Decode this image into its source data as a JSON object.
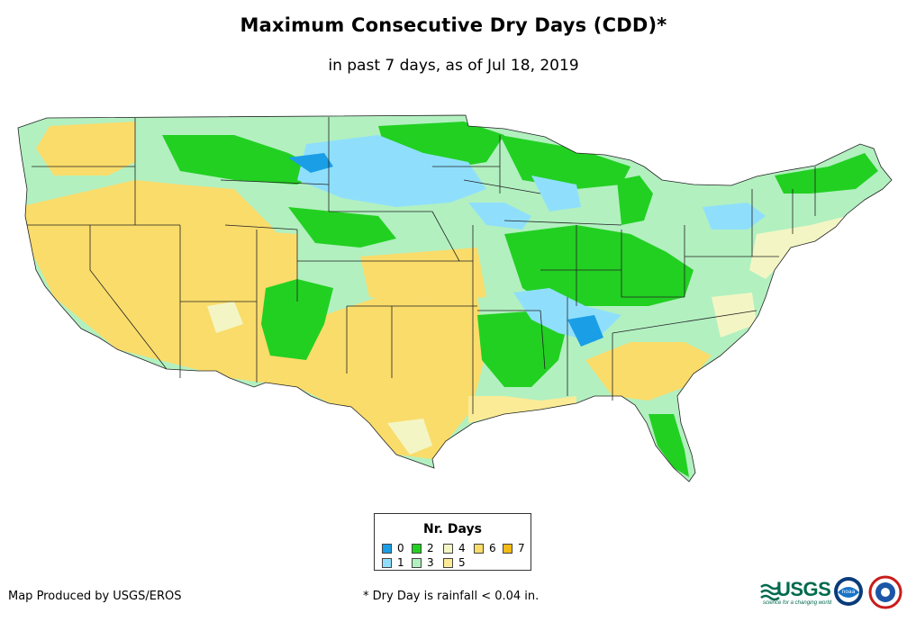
{
  "title": "Maximum Consecutive Dry Days (CDD)*",
  "subtitle": "in past 7 days, as of Jul 18, 2019",
  "legend": {
    "title": "Nr. Days",
    "items": [
      {
        "label": "0",
        "color": "#1a9ee6"
      },
      {
        "label": "1",
        "color": "#8fdffc"
      },
      {
        "label": "2",
        "color": "#22d022"
      },
      {
        "label": "3",
        "color": "#b2f0c0"
      },
      {
        "label": "4",
        "color": "#f3f6c4"
      },
      {
        "label": "5",
        "color": "#fbeb96"
      },
      {
        "label": "6",
        "color": "#fadc6b"
      },
      {
        "label": "7",
        "color": "#f2bb18"
      }
    ]
  },
  "credit": "Map Produced by USGS/EROS",
  "footnote": "* Dry Day is rainfall < 0.04 in.",
  "logos": {
    "usgs": "USGS",
    "usgs_tagline": "science for a changing world",
    "noaa": "noaa",
    "nws": "nws-logo"
  }
}
